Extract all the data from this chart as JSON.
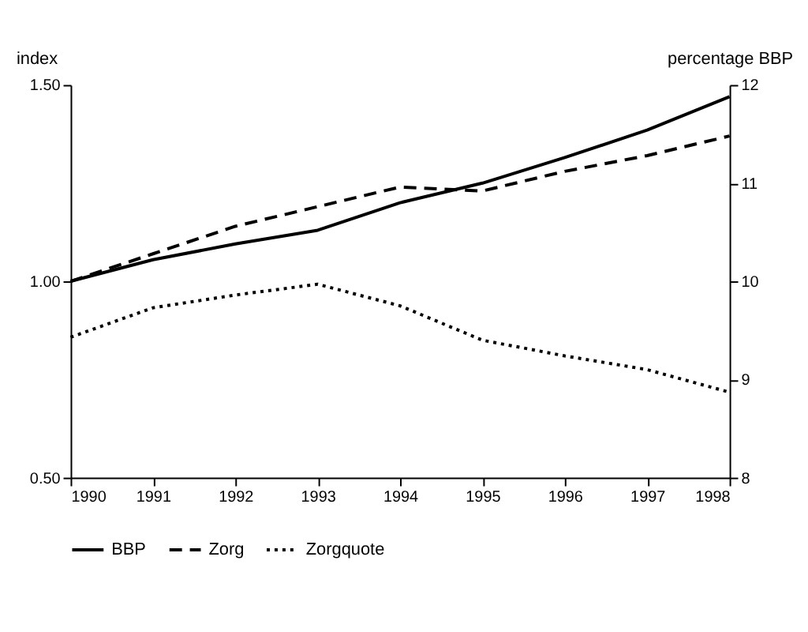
{
  "chart_data": {
    "type": "line",
    "xlabel": null,
    "ylabel": "index",
    "y2label": "percentage BBP",
    "x": [
      1990,
      1991,
      1992,
      1993,
      1994,
      1995,
      1996,
      1997,
      1998
    ],
    "xlim": [
      1990,
      1998
    ],
    "xticks": [
      1990,
      1991,
      1992,
      1993,
      1994,
      1995,
      1996,
      1997,
      1998
    ],
    "ylim": [
      0.5,
      1.5
    ],
    "yticks": [
      {
        "value": 0.5,
        "label": "0.50"
      },
      {
        "value": 1.0,
        "label": "1.00"
      },
      {
        "value": 1.5,
        "label": "1.50"
      }
    ],
    "y2lim": [
      8,
      12
    ],
    "y2ticks": [
      8,
      9,
      10,
      11,
      12
    ],
    "grid": false,
    "legend": "bottom",
    "marker": "none",
    "series": [
      {
        "name": "BBP",
        "color": "#000000",
        "line_style": "solid",
        "values": [
          1.0,
          1.055,
          1.095,
          1.13,
          1.2,
          1.25,
          1.315,
          1.385,
          1.47
        ]
      },
      {
        "name": "Zorg",
        "color": "#000000",
        "line_style": "dashed",
        "values": [
          1.0,
          1.07,
          1.14,
          1.19,
          1.24,
          1.23,
          1.28,
          1.32,
          1.37
        ]
      },
      {
        "name": "Zorgquote",
        "color": "#000000",
        "line_style": "dotted",
        "axis": "y2",
        "values": [
          9.43,
          9.73,
          9.86,
          9.97,
          9.75,
          9.4,
          9.24,
          9.1,
          8.87
        ]
      }
    ]
  }
}
